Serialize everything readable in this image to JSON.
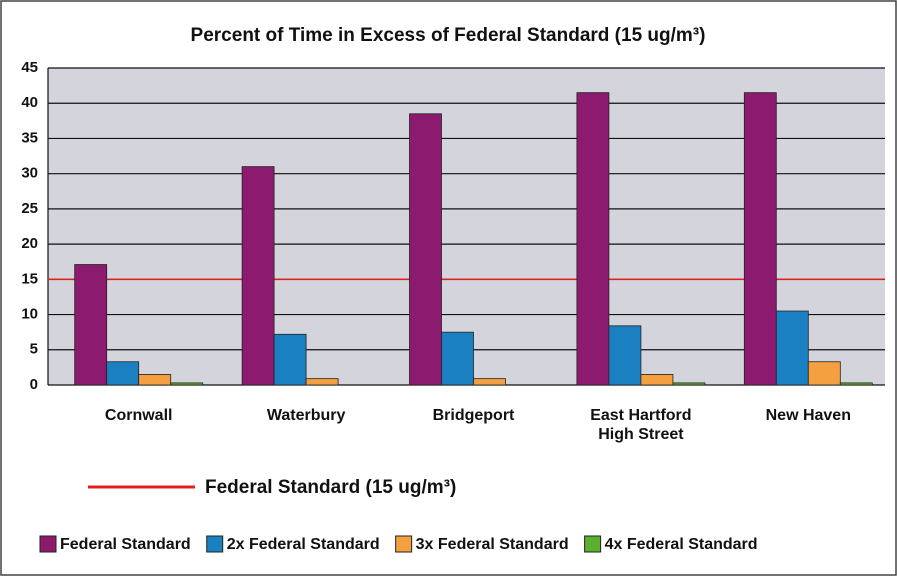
{
  "chart_data": {
    "type": "bar",
    "title": "Percent of Time in Excess of Federal Standard (15 ug/m³)",
    "categories": [
      "Cornwall",
      "Waterbury",
      "Bridgeport",
      "East Hartford High Street",
      "New Haven"
    ],
    "series": [
      {
        "name": "Federal Standard",
        "color": "#8c1a6e",
        "values": [
          17.1,
          31,
          38.5,
          41.5,
          41.5
        ]
      },
      {
        "name": "2x Federal Standard",
        "color": "#1a80c2",
        "values": [
          3.3,
          7.2,
          7.5,
          8.4,
          10.5
        ]
      },
      {
        "name": "3x Federal Standard",
        "color": "#f5a040",
        "values": [
          1.5,
          0.9,
          0.9,
          1.5,
          3.3
        ]
      },
      {
        "name": "4x Federal Standard",
        "color": "#5cb030",
        "values": [
          0.3,
          0,
          0,
          0.3,
          0.3
        ]
      }
    ],
    "ylim": [
      0,
      45
    ],
    "yticks": [
      0,
      5,
      10,
      15,
      20,
      25,
      30,
      35,
      40,
      45
    ],
    "grid": true,
    "reference_line": {
      "value": 15,
      "label": "Federal Standard (15 ug/m³)",
      "color": "#e02020"
    }
  }
}
